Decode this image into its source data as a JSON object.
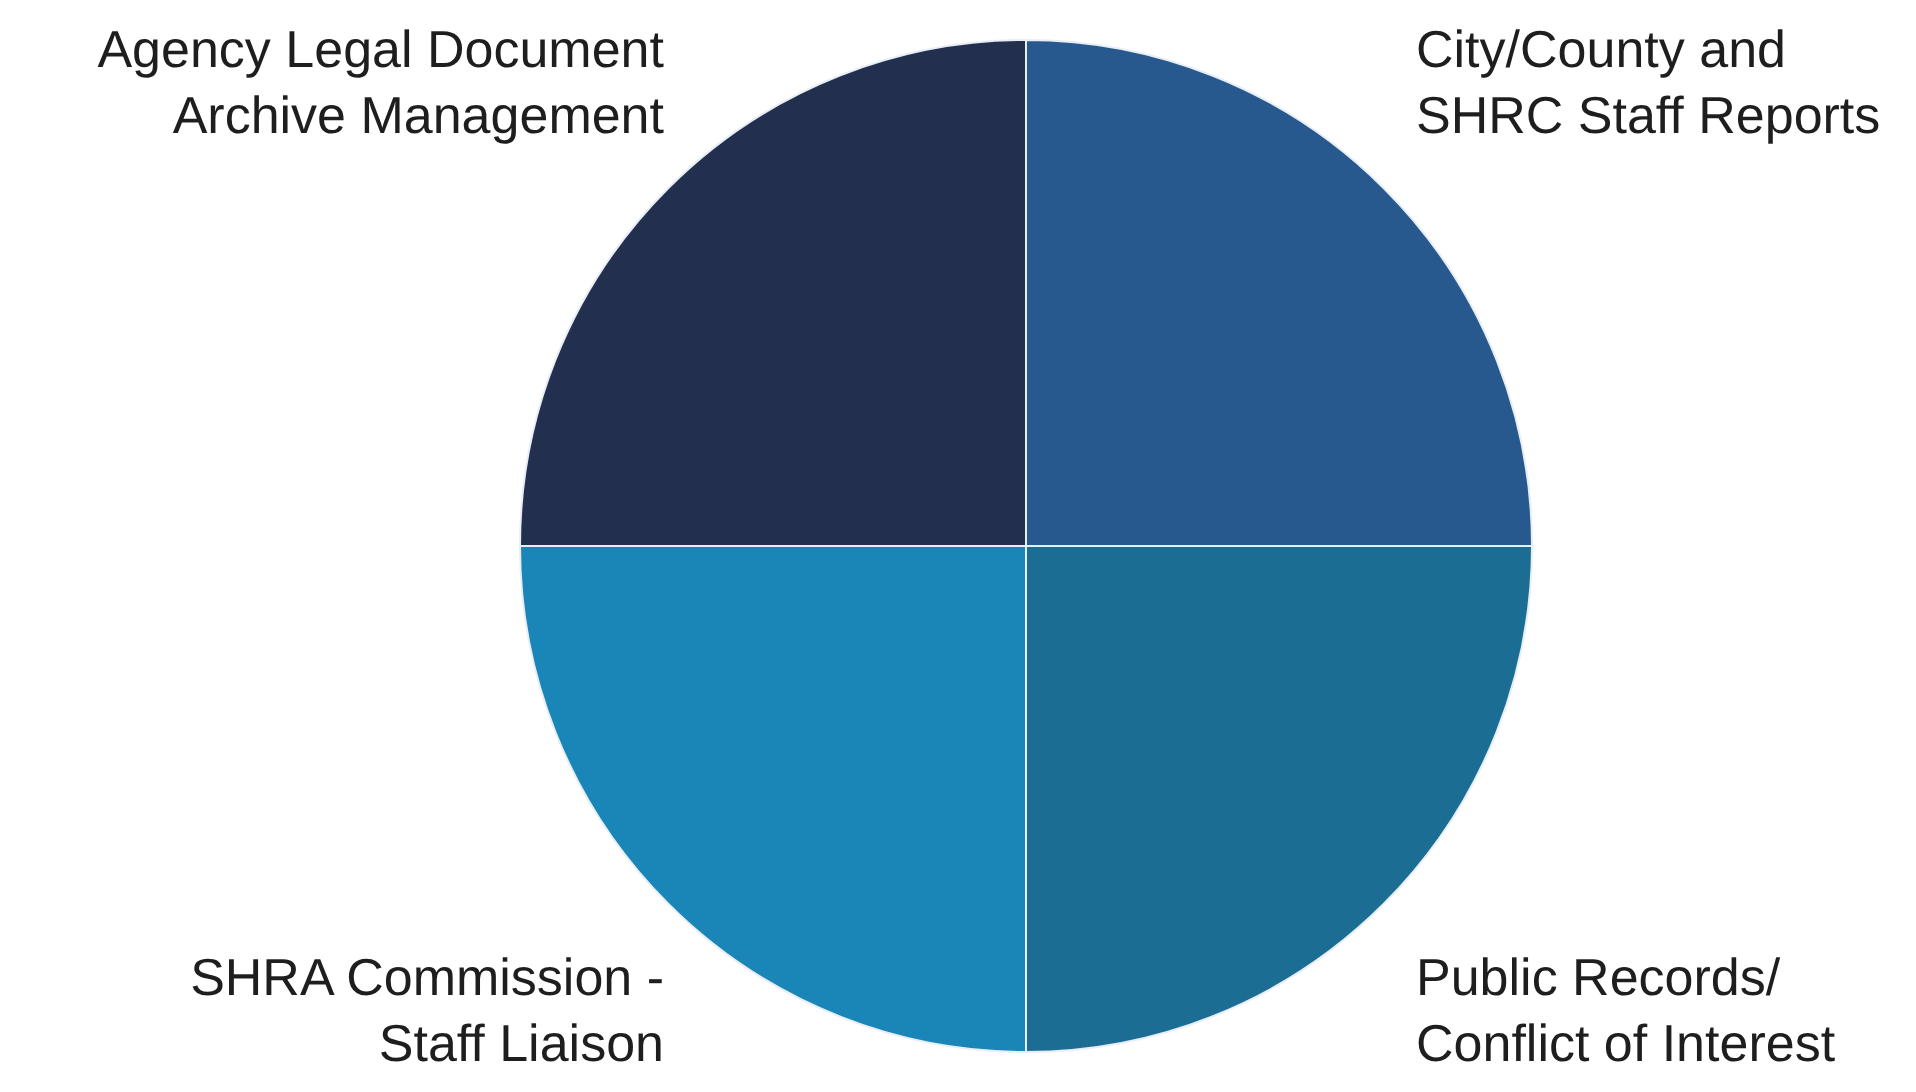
{
  "chart_data": {
    "type": "pie",
    "categories": [
      "City/County and\nSHRC Staff Reports",
      "Public Records/\nConflict of Interest",
      "SHRA Commission -\nStaff Liaison",
      "Agency Legal Document\nArchive Management"
    ],
    "values": [
      25,
      25,
      25,
      25
    ],
    "colors": [
      "#28598e",
      "#1b6d94",
      "#1986b7",
      "#232f4f"
    ]
  }
}
